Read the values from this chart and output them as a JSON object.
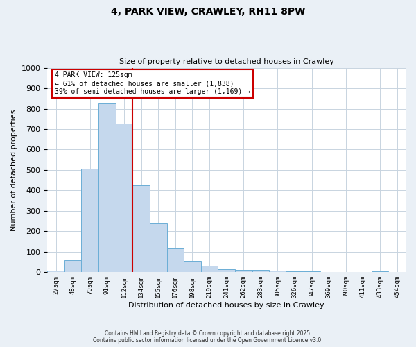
{
  "title_line1": "4, PARK VIEW, CRAWLEY, RH11 8PW",
  "title_line2": "Size of property relative to detached houses in Crawley",
  "xlabel": "Distribution of detached houses by size in Crawley",
  "ylabel": "Number of detached properties",
  "bar_labels": [
    "27sqm",
    "48sqm",
    "70sqm",
    "91sqm",
    "112sqm",
    "134sqm",
    "155sqm",
    "176sqm",
    "198sqm",
    "219sqm",
    "241sqm",
    "262sqm",
    "283sqm",
    "305sqm",
    "326sqm",
    "347sqm",
    "369sqm",
    "390sqm",
    "411sqm",
    "433sqm",
    "454sqm"
  ],
  "bar_values": [
    8,
    60,
    505,
    826,
    727,
    426,
    237,
    115,
    57,
    30,
    14,
    10,
    10,
    7,
    4,
    4,
    1,
    0,
    0,
    4,
    0
  ],
  "bar_color": "#c5d8ed",
  "bar_edge_color": "#6baed6",
  "property_line_x": 4.5,
  "property_line_label": "4 PARK VIEW: 125sqm",
  "annotation_line2": "← 61% of detached houses are smaller (1,838)",
  "annotation_line3": "39% of semi-detached houses are larger (1,169) →",
  "vline_color": "#cc0000",
  "box_edge_color": "#cc0000",
  "ylim": [
    0,
    1000
  ],
  "yticks": [
    0,
    100,
    200,
    300,
    400,
    500,
    600,
    700,
    800,
    900,
    1000
  ],
  "footnote1": "Contains HM Land Registry data © Crown copyright and database right 2025.",
  "footnote2": "Contains public sector information licensed under the Open Government Licence v3.0.",
  "bg_color": "#eaf0f6",
  "plot_bg_color": "#ffffff",
  "grid_color": "#c8d4e0"
}
